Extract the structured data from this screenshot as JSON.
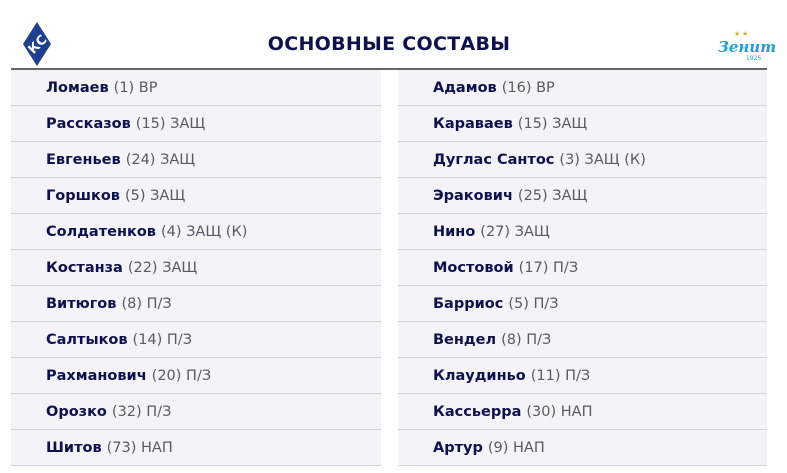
{
  "title": "ОСНОВНЫЕ СОСТАВЫ",
  "home_logo": {
    "text": "КС",
    "color": "#1e3f8f"
  },
  "away_logo": {
    "text": "Зенит",
    "year": "1925",
    "color": "#1aa0dc",
    "stars_color": "#d8b030"
  },
  "home": [
    {
      "name": "Ломаев",
      "info": "(1) ВР"
    },
    {
      "name": "Рассказов",
      "info": "(15) ЗАЩ"
    },
    {
      "name": "Евгеньев",
      "info": "(24) ЗАЩ"
    },
    {
      "name": "Горшков",
      "info": "(5) ЗАЩ"
    },
    {
      "name": "Солдатенков",
      "info": "(4) ЗАЩ (К)"
    },
    {
      "name": "Костанза",
      "info": "(22) ЗАЩ"
    },
    {
      "name": "Витюгов",
      "info": "(8) П/З"
    },
    {
      "name": "Салтыков",
      "info": "(14) П/З"
    },
    {
      "name": "Рахманович",
      "info": "(20) П/З"
    },
    {
      "name": "Орозко",
      "info": "(32) П/З"
    },
    {
      "name": "Шитов",
      "info": "(73) НАП"
    }
  ],
  "away": [
    {
      "name": "Адамов",
      "info": "(16) ВР"
    },
    {
      "name": "Караваев",
      "info": "(15) ЗАЩ"
    },
    {
      "name": "Дуглас Сантос",
      "info": "(3) ЗАЩ (К)"
    },
    {
      "name": "Эракович",
      "info": "(25) ЗАЩ"
    },
    {
      "name": "Нино",
      "info": "(27) ЗАЩ"
    },
    {
      "name": "Мостовой",
      "info": "(17) П/З"
    },
    {
      "name": "Барриос",
      "info": "(5) П/З"
    },
    {
      "name": "Вендел",
      "info": "(8) П/З"
    },
    {
      "name": "Клаудиньо",
      "info": "(11) П/З"
    },
    {
      "name": "Кассьерра",
      "info": "(30) НАП"
    },
    {
      "name": "Артур",
      "info": "(9) НАП"
    }
  ]
}
